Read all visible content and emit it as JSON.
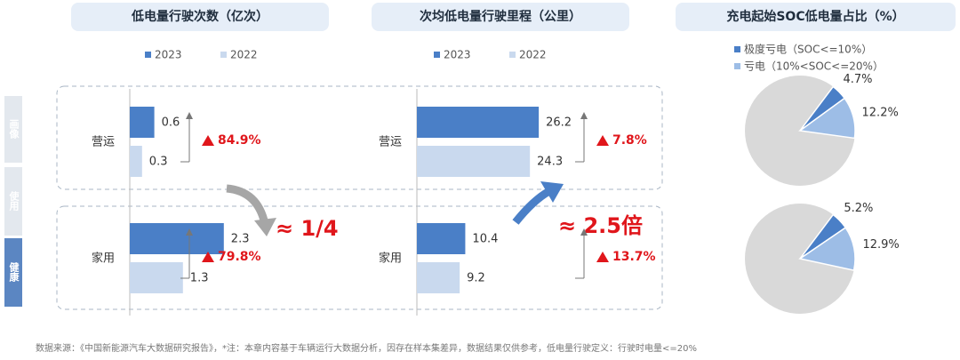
{
  "side_tabs": [
    "画像",
    "使用",
    "健康"
  ],
  "chart_data": [
    {
      "type": "bar",
      "title": "低电量行驶次数（亿次）",
      "categories": [
        "营运",
        "家用"
      ],
      "series": [
        {
          "name": "2023",
          "color": "#4a7fc7",
          "values": [
            0.6,
            2.3
          ]
        },
        {
          "name": "2022",
          "color": "#c9d9ee",
          "values": [
            0.3,
            1.3
          ]
        }
      ],
      "growth": [
        "84.9%",
        "79.8%"
      ],
      "xlim": [
        0,
        3
      ]
    },
    {
      "type": "bar",
      "title": "次均低电量行驶里程（公里）",
      "categories": [
        "营运",
        "家用"
      ],
      "series": [
        {
          "name": "2023",
          "color": "#4a7fc7",
          "values": [
            26.2,
            10.4
          ]
        },
        {
          "name": "2022",
          "color": "#c9d9ee",
          "values": [
            24.3,
            9.2
          ]
        }
      ],
      "growth": [
        "7.8%",
        "13.7%"
      ],
      "xlim": [
        0,
        30
      ]
    },
    {
      "type": "pie",
      "title": "充电起始SOC低电量占比（%）",
      "series": [
        {
          "name": "极度亏电（SOC<=10%）",
          "color": "#4a7fc7",
          "values": [
            4.7,
            5.2
          ],
          "value_labels": [
            "4.7%",
            "5.2%"
          ]
        },
        {
          "name": "亏电（10%<SOC<=20%）",
          "color": "#9dbde6",
          "values": [
            12.2,
            12.9
          ],
          "value_labels": [
            "12.2%",
            "12.9%"
          ]
        }
      ]
    }
  ],
  "annotations": [
    "≈ 1/4",
    "≈ 2.5倍"
  ],
  "footnote": "数据来源：《中国新能源汽车大数据研究报告》，*注：本章内容基于车辆运行大数据分析，因存在样本集差异，数据结果仅供参考，低电量行驶定义：行驶时电量<=20%"
}
